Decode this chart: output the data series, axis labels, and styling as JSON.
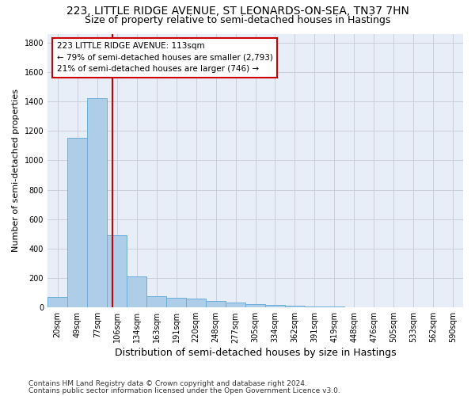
{
  "title": "223, LITTLE RIDGE AVENUE, ST LEONARDS-ON-SEA, TN37 7HN",
  "subtitle": "Size of property relative to semi-detached houses in Hastings",
  "xlabel": "Distribution of semi-detached houses by size in Hastings",
  "ylabel": "Number of semi-detached properties",
  "footnote1": "Contains HM Land Registry data © Crown copyright and database right 2024.",
  "footnote2": "Contains public sector information licensed under the Open Government Licence v3.0.",
  "annotation_title": "223 LITTLE RIDGE AVENUE: 113sqm",
  "annotation_line1": "← 79% of semi-detached houses are smaller (2,793)",
  "annotation_line2": "21% of semi-detached houses are larger (746) →",
  "bar_categories": [
    "20sqm",
    "49sqm",
    "77sqm",
    "106sqm",
    "134sqm",
    "163sqm",
    "191sqm",
    "220sqm",
    "248sqm",
    "277sqm",
    "305sqm",
    "334sqm",
    "362sqm",
    "391sqm",
    "419sqm",
    "448sqm",
    "476sqm",
    "505sqm",
    "533sqm",
    "562sqm",
    "590sqm"
  ],
  "bar_values": [
    70,
    1150,
    1420,
    490,
    210,
    75,
    63,
    60,
    45,
    32,
    20,
    15,
    10,
    8,
    5,
    3,
    2,
    2,
    1,
    1,
    1
  ],
  "bar_edges": [
    20,
    49,
    77,
    106,
    134,
    163,
    191,
    220,
    248,
    277,
    305,
    334,
    362,
    391,
    419,
    448,
    476,
    505,
    533,
    562,
    590,
    619
  ],
  "bar_color": "#aecde8",
  "bar_edge_color": "#6baed6",
  "vline_x": 113,
  "vline_color": "#cc0000",
  "annotation_box_edgecolor": "#cc0000",
  "ylim_max": 1860,
  "yticks": [
    0,
    200,
    400,
    600,
    800,
    1000,
    1200,
    1400,
    1600,
    1800
  ],
  "plot_bg_color": "#e8eef8",
  "grid_color": "#c8c8d8",
  "title_fontsize": 10,
  "subtitle_fontsize": 9,
  "ylabel_fontsize": 8,
  "xlabel_fontsize": 9,
  "tick_fontsize": 7,
  "annotation_fontsize": 7.5,
  "footnote_fontsize": 6.5
}
